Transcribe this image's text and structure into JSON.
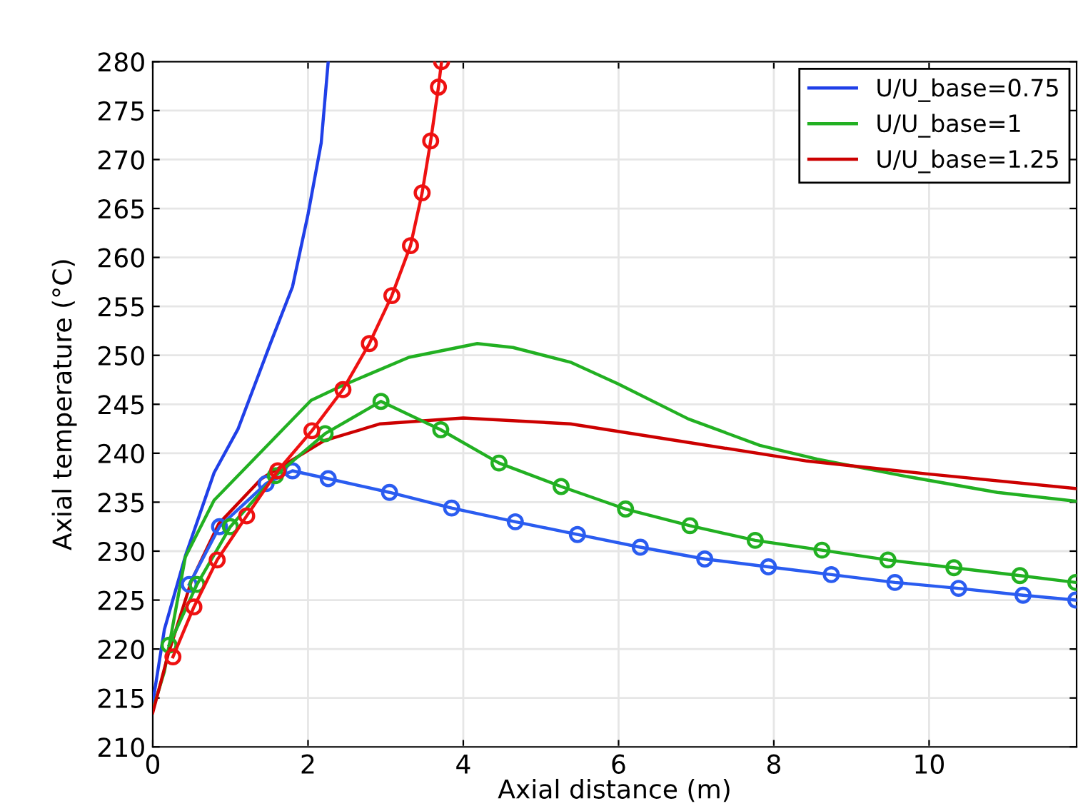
{
  "chart_data": {
    "type": "line",
    "xlabel": "Axial distance (m)",
    "ylabel": "Axial temperature (°C)",
    "xlim": [
      0,
      11.9
    ],
    "ylim": [
      210,
      280
    ],
    "xticks": [
      0,
      2,
      4,
      6,
      8,
      10
    ],
    "yticks": [
      210,
      215,
      220,
      225,
      230,
      235,
      240,
      245,
      250,
      255,
      260,
      265,
      270,
      275,
      280
    ],
    "grid": true,
    "legend": "top right",
    "marker": "none",
    "line_style": "solid",
    "series": [
      {
        "name": "U/U_base=0.75",
        "color": "#2040e8",
        "x": [
          0,
          0.15,
          0.42,
          0.79,
          1.1,
          1.52,
          1.8,
          2.0,
          2.17,
          2.26
        ],
        "values": [
          214.5,
          222,
          229.5,
          238,
          242.5,
          251.3,
          257,
          264.4,
          271.7,
          280
        ]
      },
      {
        "name": "U/U_base=1",
        "color": "#22b022",
        "x": [
          0,
          0.15,
          0.42,
          0.79,
          2.04,
          2.44,
          3.3,
          4.18,
          4.64,
          5.38,
          5.99,
          6.9,
          7.82,
          8.56,
          9.66,
          10.88,
          11.89
        ],
        "values": [
          213.8,
          217.7,
          229.4,
          235.2,
          245.4,
          246.9,
          249.8,
          251.2,
          250.8,
          249.3,
          247.1,
          243.5,
          240.8,
          239.4,
          237.7,
          236,
          235.1
        ]
      },
      {
        "name": "U/U_base=1.25",
        "color": "#cc0000",
        "x": [
          0,
          0.2,
          0.5,
          0.85,
          1.4,
          2.21,
          2.93,
          4.0,
          5.38,
          6.9,
          8.43,
          9.96,
          11.89
        ],
        "values": [
          213.5,
          219.5,
          227,
          232.8,
          237.4,
          241.3,
          243,
          243.6,
          243,
          241.1,
          239.2,
          237.9,
          236.4
        ]
      },
      {
        "color": "#2a5cf0",
        "marker": "circle",
        "x": [
          0.47,
          0.86,
          1.46,
          1.8,
          2.26,
          3.05,
          3.85,
          4.67,
          5.47,
          6.28,
          7.11,
          7.93,
          8.74,
          9.56,
          10.38,
          11.21,
          11.89
        ],
        "values": [
          226.6,
          232.5,
          236.9,
          238.2,
          237.4,
          236,
          234.4,
          233,
          231.7,
          230.4,
          229.2,
          228.4,
          227.6,
          226.8,
          226.2,
          225.5,
          225
        ]
      },
      {
        "color": "#22b022",
        "marker": "circle",
        "x": [
          0.21,
          0.57,
          1.0,
          1.58,
          2.22,
          2.94,
          3.71,
          4.46,
          5.26,
          6.09,
          6.92,
          7.76,
          8.62,
          9.47,
          10.32,
          11.17,
          11.89
        ],
        "values": [
          220.4,
          226.6,
          232.5,
          237.7,
          242,
          245.3,
          242.4,
          239,
          236.6,
          234.3,
          232.6,
          231.1,
          230.1,
          229.1,
          228.3,
          227.5,
          226.8
        ]
      },
      {
        "color": "#ee1111",
        "marker": "circle",
        "x": [
          0.26,
          0.53,
          0.83,
          1.21,
          1.61,
          2.05,
          2.45,
          2.79,
          3.08,
          3.32,
          3.47,
          3.58,
          3.68,
          3.72
        ],
        "values": [
          219.2,
          224.3,
          229.1,
          233.6,
          238.2,
          242.3,
          246.5,
          251.2,
          256.1,
          261.2,
          266.6,
          271.9,
          277.4,
          280
        ]
      }
    ]
  }
}
